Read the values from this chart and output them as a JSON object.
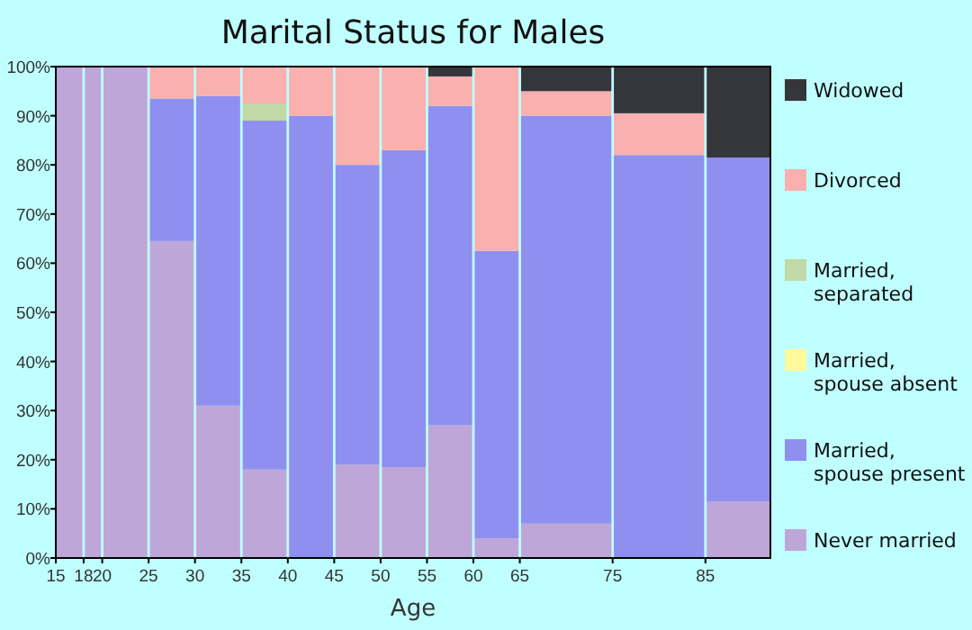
{
  "chart_data": {
    "type": "bar",
    "title": "Marital Status for Males",
    "xlabel": "Age",
    "stacked": true,
    "legend": "right",
    "grid": false,
    "x": [
      16.5,
      19,
      22.5,
      27.5,
      32.5,
      37.5,
      42.5,
      47.5,
      52.5,
      57.5,
      62.5,
      70,
      80,
      88.5
    ],
    "xlim": [
      15,
      92
    ],
    "xticks": [
      15,
      18,
      20,
      25,
      30,
      35,
      40,
      45,
      50,
      55,
      60,
      65,
      75,
      85
    ],
    "ylim": [
      0,
      100
    ],
    "yticks": [
      {
        "value": 0,
        "label": "0%"
      },
      {
        "value": 10,
        "label": "10%"
      },
      {
        "value": 20,
        "label": "20%"
      },
      {
        "value": 30,
        "label": "30%"
      },
      {
        "value": 40,
        "label": "40%"
      },
      {
        "value": 50,
        "label": "50%"
      },
      {
        "value": 60,
        "label": "60%"
      },
      {
        "value": 70,
        "label": "70%"
      },
      {
        "value": 80,
        "label": "80%"
      },
      {
        "value": 90,
        "label": "90%"
      },
      {
        "value": 100,
        "label": "100%"
      }
    ],
    "series": [
      {
        "name": "Never married",
        "color": "#bea7d8",
        "values": [
          100,
          100,
          100,
          64.5,
          31,
          18,
          0,
          19,
          18.5,
          27,
          4,
          7,
          0,
          11.5
        ]
      },
      {
        "name": "Married, spouse present",
        "color": "#8f8ff0",
        "values": [
          0,
          0,
          0,
          29,
          63,
          71,
          90,
          61,
          64.5,
          65,
          58.5,
          83,
          82,
          70
        ]
      },
      {
        "name": "Married, spouse absent",
        "color": "#fffa99",
        "values": [
          0,
          0,
          0,
          0,
          0,
          0,
          0,
          0,
          0,
          0,
          0,
          0,
          0,
          0
        ]
      },
      {
        "name": "Married, separated",
        "color": "#c0d9a6",
        "values": [
          0,
          0,
          0,
          0,
          0,
          3.5,
          0,
          0,
          0,
          0,
          0,
          0,
          0,
          0
        ]
      },
      {
        "name": "Divorced",
        "color": "#f9b0ae",
        "values": [
          0,
          0,
          0,
          6.5,
          6,
          7.5,
          10,
          20,
          17,
          6,
          37.5,
          5,
          8.5,
          0
        ]
      },
      {
        "name": "Widowed",
        "color": "#35363b",
        "values": [
          0,
          0,
          0,
          0,
          0,
          0,
          0,
          0,
          0,
          2,
          0,
          5,
          9.5,
          18.5
        ]
      }
    ]
  }
}
